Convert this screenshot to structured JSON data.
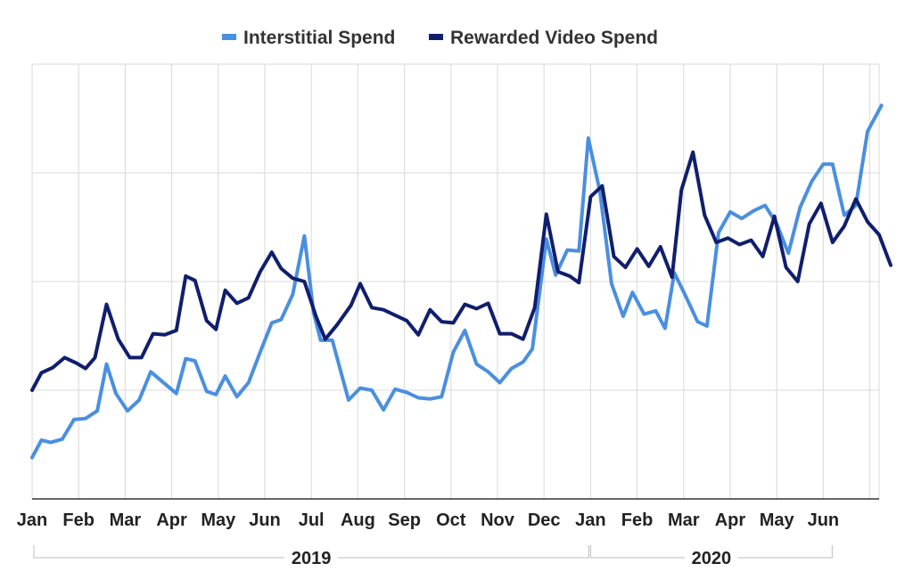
{
  "colors": {
    "interstitial": "#4a8fe0",
    "rewarded": "#101e6e"
  },
  "chart_data": {
    "type": "line",
    "title": "",
    "xlabel": "",
    "ylabel": "",
    "ylim": [
      0,
      4
    ],
    "grid": true,
    "legend_position": "top-center",
    "month_labels": [
      "Jan",
      "Feb",
      "Mar",
      "Apr",
      "May",
      "Jun",
      "Jul",
      "Aug",
      "Sep",
      "Oct",
      "Nov",
      "Dec",
      "Jan",
      "Feb",
      "Mar",
      "Apr",
      "May",
      "Jun"
    ],
    "year_groups": [
      {
        "label": "2019",
        "first_month": 0,
        "last_month": 11
      },
      {
        "label": "2020",
        "first_month": 12,
        "last_month": 17
      }
    ],
    "series": [
      {
        "name": "Interstitial Spend",
        "color_key": "interstitial",
        "points": [
          [
            0.0,
            0.38
          ],
          [
            0.2,
            0.54
          ],
          [
            0.4,
            0.52
          ],
          [
            0.65,
            0.55
          ],
          [
            0.9,
            0.73
          ],
          [
            1.15,
            0.74
          ],
          [
            1.4,
            0.81
          ],
          [
            1.6,
            1.24
          ],
          [
            1.8,
            0.97
          ],
          [
            2.05,
            0.81
          ],
          [
            2.3,
            0.91
          ],
          [
            2.55,
            1.17
          ],
          [
            2.85,
            1.06
          ],
          [
            3.1,
            0.97
          ],
          [
            3.3,
            1.29
          ],
          [
            3.5,
            1.27
          ],
          [
            3.75,
            0.99
          ],
          [
            3.95,
            0.96
          ],
          [
            4.15,
            1.13
          ],
          [
            4.4,
            0.94
          ],
          [
            4.65,
            1.07
          ],
          [
            4.9,
            1.35
          ],
          [
            5.15,
            1.62
          ],
          [
            5.35,
            1.65
          ],
          [
            5.6,
            1.88
          ],
          [
            5.85,
            2.42
          ],
          [
            6.05,
            1.71
          ],
          [
            6.2,
            1.46
          ],
          [
            6.45,
            1.46
          ],
          [
            6.8,
            0.91
          ],
          [
            7.05,
            1.02
          ],
          [
            7.3,
            1.0
          ],
          [
            7.55,
            0.82
          ],
          [
            7.8,
            1.01
          ],
          [
            8.05,
            0.98
          ],
          [
            8.3,
            0.93
          ],
          [
            8.55,
            0.92
          ],
          [
            8.8,
            0.94
          ],
          [
            9.05,
            1.35
          ],
          [
            9.3,
            1.55
          ],
          [
            9.55,
            1.24
          ],
          [
            9.8,
            1.17
          ],
          [
            10.05,
            1.07
          ],
          [
            10.3,
            1.2
          ],
          [
            10.55,
            1.26
          ],
          [
            10.75,
            1.38
          ],
          [
            11.05,
            2.39
          ],
          [
            11.25,
            2.06
          ],
          [
            11.5,
            2.29
          ],
          [
            11.75,
            2.28
          ],
          [
            11.95,
            3.32
          ],
          [
            12.2,
            2.83
          ],
          [
            12.45,
            1.98
          ],
          [
            12.7,
            1.68
          ],
          [
            12.9,
            1.9
          ],
          [
            13.15,
            1.7
          ],
          [
            13.4,
            1.73
          ],
          [
            13.6,
            1.57
          ],
          [
            13.8,
            2.08
          ],
          [
            14.05,
            1.86
          ],
          [
            14.3,
            1.63
          ],
          [
            14.5,
            1.59
          ],
          [
            14.75,
            2.45
          ],
          [
            15.0,
            2.64
          ],
          [
            15.25,
            2.58
          ],
          [
            15.5,
            2.65
          ],
          [
            15.75,
            2.7
          ],
          [
            16.0,
            2.53
          ],
          [
            16.25,
            2.26
          ],
          [
            16.5,
            2.68
          ],
          [
            16.75,
            2.92
          ],
          [
            17.0,
            3.08
          ],
          [
            17.2,
            3.08
          ],
          [
            17.45,
            2.61
          ],
          [
            17.7,
            2.7
          ],
          [
            17.95,
            3.38
          ],
          [
            18.25,
            3.62
          ]
        ]
      },
      {
        "name": "Rewarded Video Spend",
        "color_key": "rewarded",
        "points": [
          [
            0.0,
            1.0
          ],
          [
            0.2,
            1.16
          ],
          [
            0.45,
            1.21
          ],
          [
            0.7,
            1.3
          ],
          [
            0.95,
            1.25
          ],
          [
            1.15,
            1.2
          ],
          [
            1.35,
            1.3
          ],
          [
            1.6,
            1.79
          ],
          [
            1.85,
            1.47
          ],
          [
            2.1,
            1.3
          ],
          [
            2.35,
            1.3
          ],
          [
            2.6,
            1.52
          ],
          [
            2.85,
            1.51
          ],
          [
            3.1,
            1.55
          ],
          [
            3.3,
            2.05
          ],
          [
            3.5,
            2.01
          ],
          [
            3.75,
            1.64
          ],
          [
            3.95,
            1.56
          ],
          [
            4.15,
            1.92
          ],
          [
            4.4,
            1.8
          ],
          [
            4.65,
            1.85
          ],
          [
            4.9,
            2.09
          ],
          [
            5.15,
            2.27
          ],
          [
            5.35,
            2.12
          ],
          [
            5.6,
            2.03
          ],
          [
            5.85,
            2.0
          ],
          [
            6.1,
            1.68
          ],
          [
            6.3,
            1.47
          ],
          [
            6.55,
            1.6
          ],
          [
            6.85,
            1.78
          ],
          [
            7.05,
            1.98
          ],
          [
            7.3,
            1.76
          ],
          [
            7.55,
            1.74
          ],
          [
            7.8,
            1.69
          ],
          [
            8.05,
            1.64
          ],
          [
            8.3,
            1.51
          ],
          [
            8.55,
            1.74
          ],
          [
            8.8,
            1.63
          ],
          [
            9.05,
            1.62
          ],
          [
            9.3,
            1.79
          ],
          [
            9.55,
            1.75
          ],
          [
            9.8,
            1.8
          ],
          [
            10.05,
            1.52
          ],
          [
            10.3,
            1.52
          ],
          [
            10.55,
            1.47
          ],
          [
            10.8,
            1.76
          ],
          [
            11.05,
            2.62
          ],
          [
            11.3,
            2.09
          ],
          [
            11.55,
            2.05
          ],
          [
            11.75,
            1.99
          ],
          [
            12.0,
            2.78
          ],
          [
            12.25,
            2.88
          ],
          [
            12.5,
            2.23
          ],
          [
            12.75,
            2.13
          ],
          [
            13.0,
            2.3
          ],
          [
            13.25,
            2.14
          ],
          [
            13.5,
            2.32
          ],
          [
            13.75,
            2.04
          ],
          [
            13.95,
            2.84
          ],
          [
            14.2,
            3.19
          ],
          [
            14.45,
            2.61
          ],
          [
            14.7,
            2.36
          ],
          [
            14.95,
            2.4
          ],
          [
            15.2,
            2.34
          ],
          [
            15.45,
            2.38
          ],
          [
            15.7,
            2.23
          ],
          [
            15.95,
            2.6
          ],
          [
            16.2,
            2.13
          ],
          [
            16.45,
            2.0
          ],
          [
            16.7,
            2.53
          ],
          [
            16.95,
            2.72
          ],
          [
            17.2,
            2.36
          ],
          [
            17.45,
            2.51
          ],
          [
            17.7,
            2.76
          ],
          [
            17.95,
            2.55
          ],
          [
            18.2,
            2.43
          ],
          [
            18.45,
            2.15
          ]
        ]
      }
    ]
  }
}
